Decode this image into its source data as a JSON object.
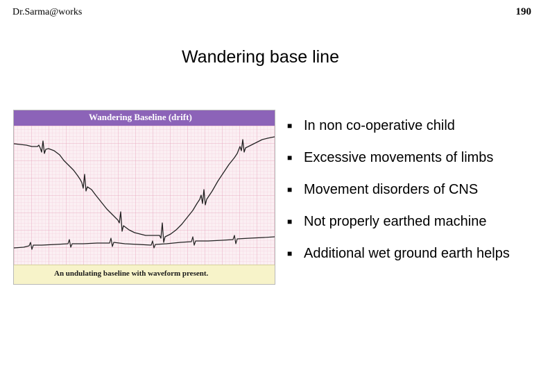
{
  "header": {
    "author": "Dr.Sarma@works",
    "page_number": "190"
  },
  "slide": {
    "title": "Wandering base line"
  },
  "figure": {
    "header_label": "Wandering Baseline (drift)",
    "caption": "An undulating baseline with waveform present.",
    "colors": {
      "header_bar": "#8c63b8",
      "grid_background": "#fbeff3",
      "caption_bar": "#f7f3c9",
      "trace": "#222222"
    }
  },
  "bullets": {
    "marker_icon": "square-bullet-icon",
    "items": [
      "In non co-operative child",
      "Excessive movements of limbs",
      "Movement disorders of CNS",
      "Not properly earthed machine",
      "Additional wet ground earth helps"
    ]
  }
}
